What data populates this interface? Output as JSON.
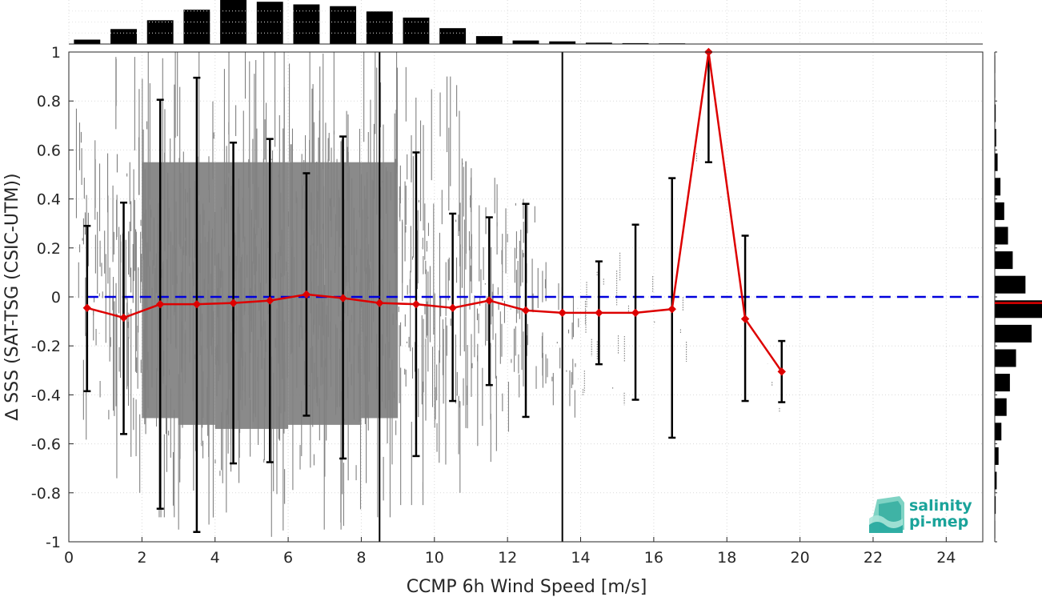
{
  "chart_data": {
    "type": "scatter",
    "xlabel": "CCMP 6h Wind Speed [m/s]",
    "ylabel": "∆ SSS (SAT-TSG (CSIC-UTM))",
    "xlim": [
      0,
      25
    ],
    "ylim": [
      -1,
      1
    ],
    "xticks": [
      0,
      2,
      4,
      6,
      8,
      10,
      12,
      14,
      16,
      18,
      20,
      22,
      24
    ],
    "yticks": [
      -1,
      -0.8,
      -0.6,
      -0.4,
      -0.2,
      0,
      0.2,
      0.4,
      0.6,
      0.8,
      1
    ],
    "xtick_labels": [
      "0",
      "2",
      "4",
      "6",
      "8",
      "10",
      "12",
      "14",
      "16",
      "18",
      "20",
      "22",
      "24"
    ],
    "ytick_labels": [
      "-1",
      "-0.8",
      "-0.6",
      "-0.4",
      "-0.2",
      "0",
      "0.2",
      "0.4",
      "0.6",
      "0.8",
      "1"
    ],
    "grid": true,
    "zero_line": {
      "y": 0,
      "color": "#0000dd",
      "style": "dashed"
    },
    "vertical_lines": [
      8.5,
      13.5
    ],
    "scatter_color": "#808080",
    "bin_stats": {
      "color": "#dd0000",
      "x": [
        0.5,
        1.5,
        2.5,
        3.5,
        4.5,
        5.5,
        6.5,
        7.5,
        8.5,
        9.5,
        10.5,
        11.5,
        12.5,
        13.5,
        14.5,
        15.5,
        16.5,
        17.5,
        18.5,
        19.5
      ],
      "mean": [
        -0.045,
        -0.085,
        -0.03,
        -0.03,
        -0.025,
        -0.015,
        0.01,
        -0.005,
        -0.025,
        -0.03,
        -0.045,
        -0.015,
        -0.055,
        -0.065,
        -0.065,
        -0.065,
        -0.05,
        1.0,
        -0.09,
        -0.305
      ],
      "err_low": [
        -0.385,
        -0.56,
        -0.865,
        -0.96,
        -0.68,
        -0.675,
        -0.485,
        -0.66,
        null,
        -0.65,
        -0.425,
        -0.36,
        -0.49,
        null,
        -0.275,
        -0.42,
        -0.575,
        0.55,
        -0.425,
        -0.43
      ],
      "err_high": [
        0.29,
        0.385,
        0.805,
        0.895,
        0.63,
        0.645,
        0.505,
        0.655,
        null,
        0.59,
        0.34,
        0.325,
        0.38,
        null,
        0.145,
        0.295,
        0.485,
        1.0,
        0.25,
        -0.18
      ]
    },
    "scatter_density": [
      {
        "x0": 0.2,
        "x1": 1.0,
        "ymin": -0.7,
        "ymax": 0.95,
        "density": 0.55
      },
      {
        "x0": 1.0,
        "x1": 2.0,
        "ymin": -0.8,
        "ymax": 0.98,
        "density": 0.8
      },
      {
        "x0": 2.0,
        "x1": 3.0,
        "ymin": -0.9,
        "ymax": 1.0,
        "density": 0.95
      },
      {
        "x0": 3.0,
        "x1": 4.0,
        "ymin": -0.95,
        "ymax": 1.0,
        "density": 0.98
      },
      {
        "x0": 4.0,
        "x1": 5.0,
        "ymin": -0.98,
        "ymax": 1.0,
        "density": 0.98
      },
      {
        "x0": 5.0,
        "x1": 6.0,
        "ymin": -0.98,
        "ymax": 1.0,
        "density": 0.98
      },
      {
        "x0": 6.0,
        "x1": 7.0,
        "ymin": -0.95,
        "ymax": 1.0,
        "density": 0.97
      },
      {
        "x0": 7.0,
        "x1": 8.0,
        "ymin": -0.95,
        "ymax": 1.0,
        "density": 0.95
      },
      {
        "x0": 8.0,
        "x1": 9.0,
        "ymin": -0.9,
        "ymax": 1.0,
        "density": 0.9
      },
      {
        "x0": 9.0,
        "x1": 10.0,
        "ymin": -0.85,
        "ymax": 0.95,
        "density": 0.8
      },
      {
        "x0": 10.0,
        "x1": 11.0,
        "ymin": -0.8,
        "ymax": 0.9,
        "density": 0.7
      },
      {
        "x0": 11.0,
        "x1": 12.0,
        "ymin": -0.75,
        "ymax": 0.8,
        "density": 0.55
      },
      {
        "x0": 12.0,
        "x1": 13.0,
        "ymin": -0.7,
        "ymax": 0.55,
        "density": 0.45
      },
      {
        "x0": 13.0,
        "x1": 14.0,
        "ymin": -0.65,
        "ymax": 0.3,
        "density": 0.3
      },
      {
        "x0": 14.0,
        "x1": 15.0,
        "ymin": -0.65,
        "ymax": 0.25,
        "density": 0.15
      },
      {
        "x0": 15.0,
        "x1": 16.0,
        "ymin": -0.6,
        "ymax": 0.4,
        "density": 0.08
      },
      {
        "x0": 16.0,
        "x1": 17.0,
        "ymin": -0.6,
        "ymax": 0.5,
        "density": 0.05
      },
      {
        "x0": 17.0,
        "x1": 18.0,
        "ymin": 0.3,
        "ymax": 0.75,
        "density": 0.03
      },
      {
        "x0": 18.0,
        "x1": 20.0,
        "ymin": -0.6,
        "ymax": -0.2,
        "density": 0.02
      }
    ],
    "x_histogram": {
      "bin_centers": [
        0.5,
        1.5,
        2.5,
        3.5,
        4.5,
        5.5,
        6.5,
        7.5,
        8.5,
        9.5,
        10.5,
        11.5,
        12.5,
        13.5,
        14.5,
        15.5,
        16.5,
        17.5,
        18.5,
        19.5
      ],
      "values": [
        0.1,
        0.34,
        0.54,
        0.78,
        1.0,
        0.96,
        0.9,
        0.86,
        0.74,
        0.6,
        0.36,
        0.18,
        0.08,
        0.06,
        0.03,
        0.02,
        0.015,
        0.005,
        0.004,
        0.003
      ]
    },
    "y_histogram": {
      "bin_centers": [
        -0.95,
        -0.85,
        -0.75,
        -0.65,
        -0.55,
        -0.45,
        -0.35,
        -0.25,
        -0.15,
        -0.05,
        0.05,
        0.15,
        0.25,
        0.35,
        0.45,
        0.55,
        0.65,
        0.75,
        0.85,
        0.95
      ],
      "values": [
        0.01,
        0.02,
        0.04,
        0.08,
        0.14,
        0.25,
        0.32,
        0.45,
        0.78,
        1.0,
        0.65,
        0.38,
        0.28,
        0.2,
        0.12,
        0.06,
        0.03,
        0.02,
        0.01,
        0.01
      ],
      "median_marker": -0.025
    }
  },
  "logo": {
    "line1": "salinity",
    "line2": "pi-mep",
    "color": "#1aa39a"
  }
}
